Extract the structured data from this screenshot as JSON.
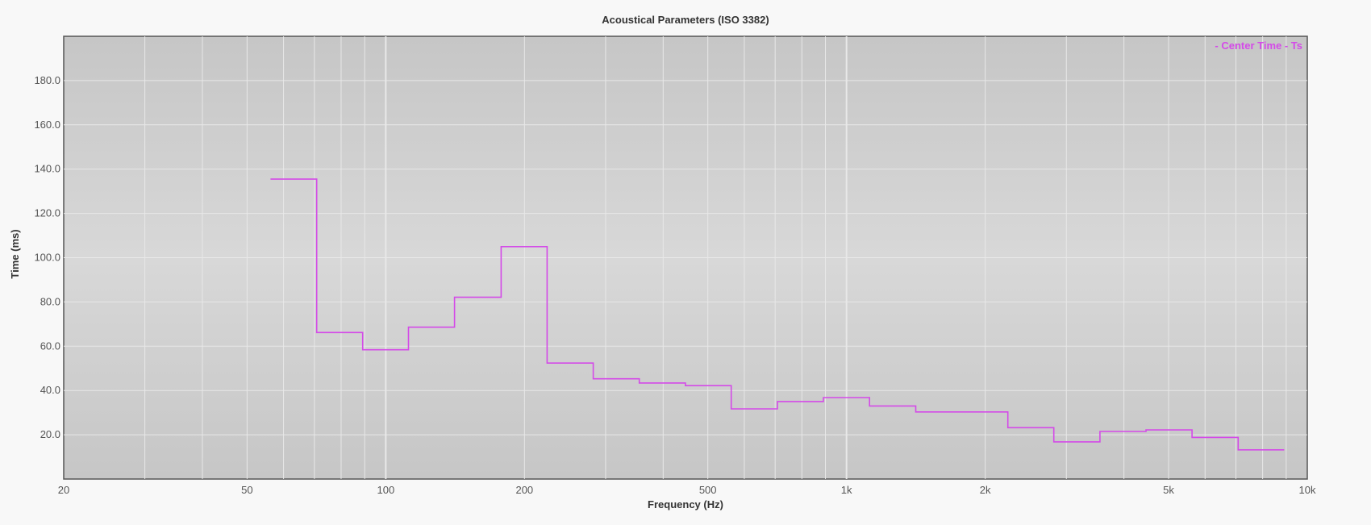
{
  "chart_data": {
    "type": "line",
    "step": true,
    "title": "Acoustical Parameters (ISO 3382)",
    "xlabel": "Frequency (Hz)",
    "ylabel": "Time (ms)",
    "xscale": "log",
    "xlim": [
      20,
      10000
    ],
    "ylim": [
      0,
      200
    ],
    "grid": true,
    "x_ticks": [
      {
        "value": 20,
        "label": "20"
      },
      {
        "value": 50,
        "label": "50"
      },
      {
        "value": 100,
        "label": "100"
      },
      {
        "value": 200,
        "label": "200"
      },
      {
        "value": 500,
        "label": "500"
      },
      {
        "value": 1000,
        "label": "1k"
      },
      {
        "value": 2000,
        "label": "2k"
      },
      {
        "value": 5000,
        "label": "5k"
      },
      {
        "value": 10000,
        "label": "10k"
      }
    ],
    "y_ticks": [
      {
        "value": 20,
        "label": "20.0"
      },
      {
        "value": 40,
        "label": "40.0"
      },
      {
        "value": 60,
        "label": "60.0"
      },
      {
        "value": 80,
        "label": "80.0"
      },
      {
        "value": 100,
        "label": "100.0"
      },
      {
        "value": 120,
        "label": "120.0"
      },
      {
        "value": 140,
        "label": "140.0"
      },
      {
        "value": 160,
        "label": "160.0"
      },
      {
        "value": 180,
        "label": "180.0"
      }
    ],
    "legend_position": "top-right",
    "colors": {
      "series": "#d44ae8",
      "plot_bg_top": "#c6c6c6",
      "plot_bg_bottom": "#d8d8d8",
      "grid": "#e8e8e8",
      "page_bg": "#f8f8f8"
    },
    "series": [
      {
        "name": "- Center Time - Ts",
        "band_edges": [
          56.2,
          70.8,
          89.1,
          112,
          141,
          178,
          224,
          282,
          355,
          447,
          562,
          708,
          891,
          1122,
          1413,
          1778,
          2239,
          2818,
          3548,
          4467,
          5623,
          7079,
          8913
        ],
        "values": [
          135.5,
          66.2,
          58.4,
          68.6,
          82.1,
          105,
          52.4,
          45.3,
          43.4,
          42.2,
          31.7,
          35,
          36.8,
          33,
          30.3,
          30.3,
          23.2,
          16.8,
          21.5,
          22.2,
          18.8,
          13.2
        ]
      }
    ]
  }
}
